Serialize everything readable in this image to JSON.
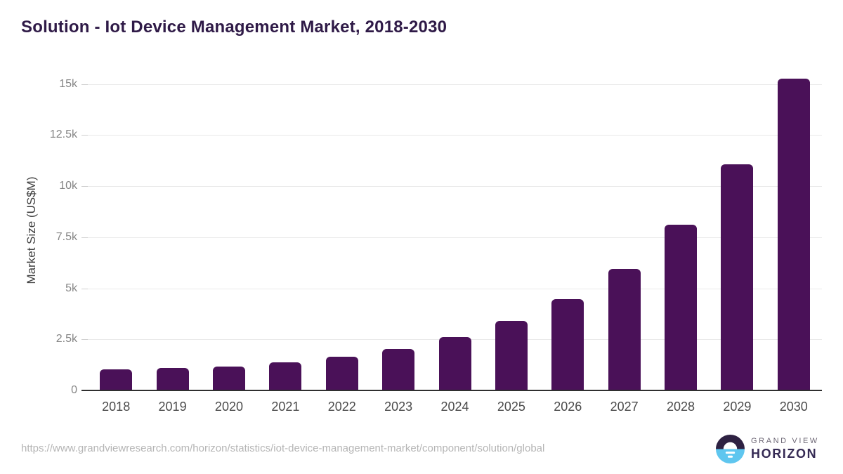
{
  "title": "Solution - Iot Device Management Market, 2018-2030",
  "source_url": "https://www.grandviewresearch.com/horizon/statistics/iot-device-management-market/component/solution/global",
  "logo": {
    "line1": "GRAND VIEW",
    "line2": "HORIZON"
  },
  "colors": {
    "bar": "#4a1158",
    "title": "#2f1a47",
    "gridline": "#e9e9e9",
    "axis_line": "#2f2f2f",
    "ytick_label": "#858585",
    "xtick_label": "#4b4b4b",
    "url_text": "#b5b5b5",
    "logo_blue": "#5fc6ef",
    "logo_purple": "#2e2142"
  },
  "chart_data": {
    "type": "bar",
    "title": "Solution - Iot Device Management Market, 2018-2030",
    "xlabel": "",
    "ylabel": "Market Size (US$M)",
    "categories": [
      "2018",
      "2019",
      "2020",
      "2021",
      "2022",
      "2023",
      "2024",
      "2025",
      "2026",
      "2027",
      "2028",
      "2029",
      "2030"
    ],
    "values": [
      1030,
      1100,
      1170,
      1375,
      1650,
      2030,
      2610,
      3400,
      4480,
      5960,
      8110,
      11090,
      15275
    ],
    "yticks": [
      {
        "value": 0,
        "label": "0"
      },
      {
        "value": 2500,
        "label": "2.5k"
      },
      {
        "value": 5000,
        "label": "5k"
      },
      {
        "value": 7500,
        "label": "7.5k"
      },
      {
        "value": 10000,
        "label": "10k"
      },
      {
        "value": 12500,
        "label": "12.5k"
      },
      {
        "value": 15000,
        "label": "15k"
      }
    ],
    "ylim": [
      0,
      15680
    ],
    "grid": true,
    "legend": false,
    "bar_corner_radius": 6
  }
}
